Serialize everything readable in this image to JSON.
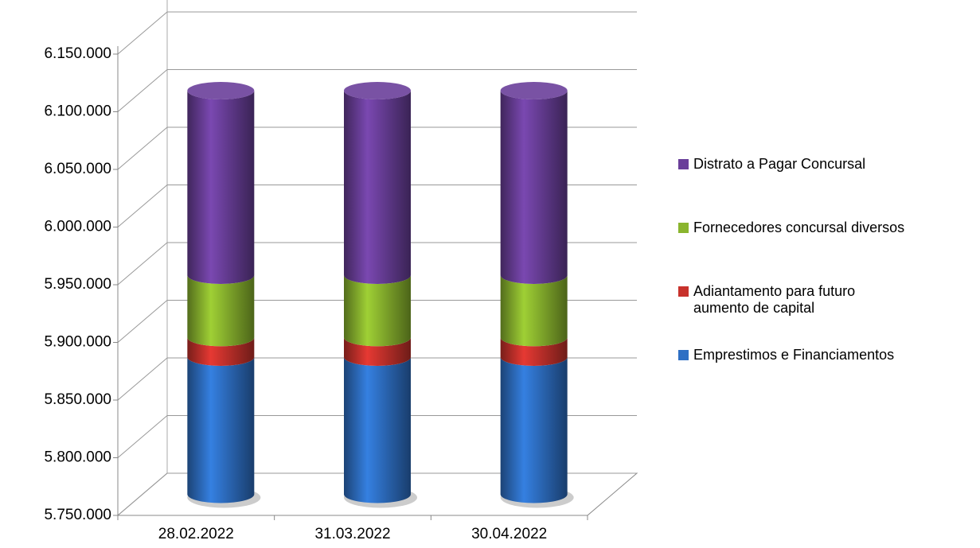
{
  "chart_data": {
    "type": "bar3d_stacked_cylinder",
    "categories": [
      "28.02.2022",
      "31.03.2022",
      "30.04.2022"
    ],
    "series": [
      {
        "name": "Emprestimos e Financiamentos",
        "color": "#2e6fc4",
        "values": [
          5869000,
          5869000,
          5869000
        ]
      },
      {
        "name": "Adiantamento para futuro aumento de capital",
        "color": "#c8322c",
        "values": [
          17000,
          17000,
          17000
        ]
      },
      {
        "name": "Fornecedores concursal diversos",
        "color": "#8ab52e",
        "values": [
          54000,
          54000,
          54000
        ]
      },
      {
        "name": "Distrato a Pagar Concursal",
        "color": "#6a3f9a",
        "values": [
          160000,
          160000,
          160000
        ]
      }
    ],
    "ylim": [
      5750000,
      6150000
    ],
    "yticks": [
      {
        "value": 5750000,
        "label": "5.750.000"
      },
      {
        "value": 5800000,
        "label": "5.800.000"
      },
      {
        "value": 5850000,
        "label": "5.850.000"
      },
      {
        "value": 5900000,
        "label": "5.900.000"
      },
      {
        "value": 5950000,
        "label": "5.950.000"
      },
      {
        "value": 6000000,
        "label": "6.000.000"
      },
      {
        "value": 6050000,
        "label": "6.050.000"
      },
      {
        "value": 6100000,
        "label": "6.100.000"
      },
      {
        "value": 6150000,
        "label": "6.150.000"
      }
    ],
    "grid": true,
    "legend": "right"
  }
}
